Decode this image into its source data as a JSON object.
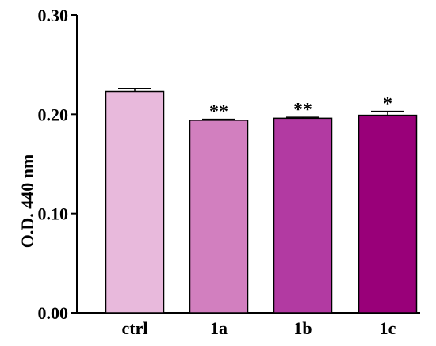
{
  "chart_data": {
    "type": "bar",
    "title": "",
    "xlabel": "",
    "ylabel": "O.D. 440 nm",
    "ylim": [
      0,
      0.3
    ],
    "yticks": [
      "0.00",
      "0.10",
      "0.20",
      "0.30"
    ],
    "categories": [
      "ctrl",
      "1a",
      "1b",
      "1c"
    ],
    "values": [
      0.223,
      0.194,
      0.196,
      0.199
    ],
    "errors": [
      0.003,
      0.001,
      0.001,
      0.004
    ],
    "significance": [
      "",
      "**",
      "**",
      "*"
    ],
    "colors": [
      "#e8b9dc",
      "#d27fbf",
      "#b23aa2",
      "#990079"
    ],
    "grid": false,
    "legend": "none"
  }
}
